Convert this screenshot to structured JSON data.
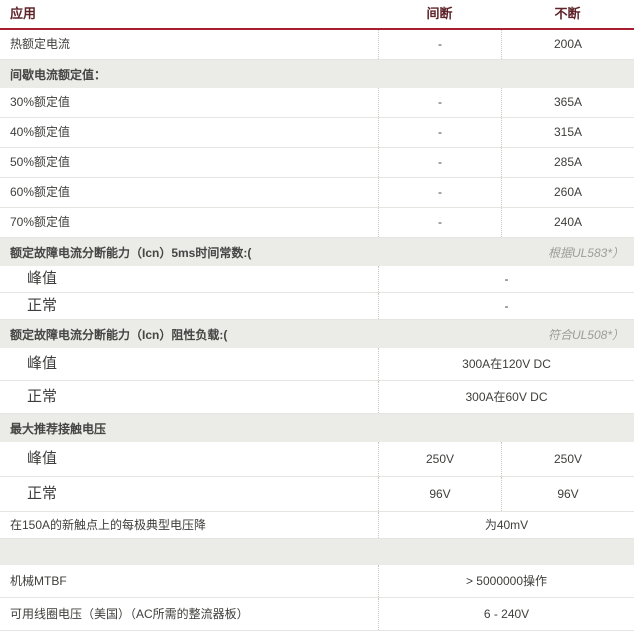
{
  "table": {
    "header": {
      "col1": "应用",
      "col2": "间断",
      "col3": "不断"
    },
    "rows": [
      {
        "type": "data",
        "label": "热额定电流",
        "intermittent": "-",
        "continuous": "200A"
      },
      {
        "type": "section",
        "label": "间歇电流额定值：",
        "note": ""
      },
      {
        "type": "data",
        "label": "30%额定值",
        "intermittent": "-",
        "continuous": "365A"
      },
      {
        "type": "data",
        "label": "40%额定值",
        "intermittent": "-",
        "continuous": "315A"
      },
      {
        "type": "data",
        "label": "50%额定值",
        "intermittent": "-",
        "continuous": "285A"
      },
      {
        "type": "data",
        "label": "60%额定值",
        "intermittent": "-",
        "continuous": "260A"
      },
      {
        "type": "data",
        "label": "70%额定值",
        "intermittent": "-",
        "continuous": "240A"
      },
      {
        "type": "section",
        "label": "额定故障电流分断能力（Icn）5ms时间常数:(",
        "note": "根据UL583*）"
      },
      {
        "type": "sub",
        "label": "峰值",
        "value": "-"
      },
      {
        "type": "sub",
        "label": "正常",
        "value": "-"
      },
      {
        "type": "section",
        "label": "额定故障电流分断能力（Icn）阻性负载:(",
        "note": "符合UL508*）"
      },
      {
        "type": "sub",
        "label": "峰值",
        "value": "300A在120V DC"
      },
      {
        "type": "sub",
        "label": "正常",
        "value": "300A在60V DC"
      },
      {
        "type": "section",
        "label": "最大推荐接触电压",
        "note": ""
      },
      {
        "type": "sub2",
        "label": "峰值",
        "intermittent": "250V",
        "continuous": "250V"
      },
      {
        "type": "sub2",
        "label": "正常",
        "intermittent": "96V",
        "continuous": "96V"
      },
      {
        "type": "merged",
        "label": "在150A的新触点上的每极典型电压降",
        "value": "为40mV"
      },
      {
        "type": "spacer",
        "label": ""
      },
      {
        "type": "merged",
        "label": "机械MTBF",
        "value": "> 5000000操作"
      },
      {
        "type": "merged",
        "label": "可用线圈电压（美国）（AC所需的整流器板）",
        "value": "6 - 240V"
      }
    ],
    "colors": {
      "accent_rule": "#a81d2f",
      "header_text": "#5e2429",
      "section_background": "#ebebe8",
      "note_text": "#9c9c99",
      "body_text": "#3e3e3c"
    }
  }
}
